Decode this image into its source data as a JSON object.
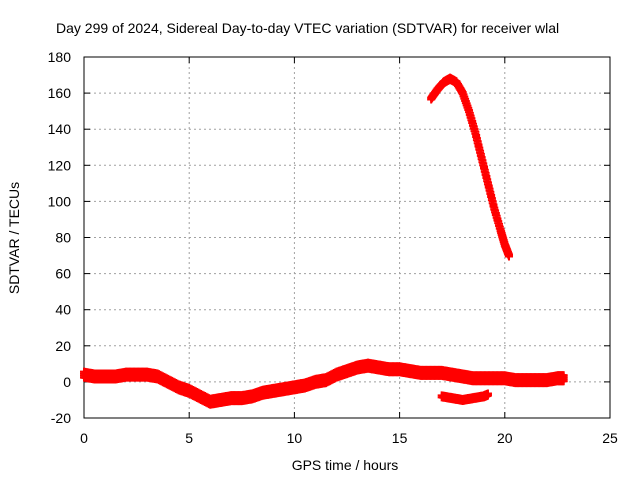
{
  "chart_data": {
    "type": "scatter",
    "title": "Day 299 of 2024, Sidereal Day-to-day VTEC variation (SDTVAR) for receiver wlal",
    "xlabel": "GPS time / hours",
    "ylabel": "SDTVAR / TECUs",
    "xlim": [
      0,
      25
    ],
    "ylim": [
      -20,
      180
    ],
    "xticks": [
      0,
      5,
      10,
      15,
      20,
      25
    ],
    "yticks": [
      -20,
      0,
      20,
      40,
      60,
      80,
      100,
      120,
      140,
      160,
      180
    ],
    "grid": true,
    "marker_color": "#ff0000",
    "series": [
      {
        "values": [
          [
            0.0,
            4
          ],
          [
            0.5,
            3
          ],
          [
            1.0,
            3
          ],
          [
            1.5,
            3
          ],
          [
            2.0,
            4
          ],
          [
            2.5,
            4
          ],
          [
            3.0,
            4
          ],
          [
            3.5,
            3
          ],
          [
            4.0,
            0
          ],
          [
            4.5,
            -3
          ],
          [
            5.0,
            -5
          ],
          [
            5.5,
            -8
          ],
          [
            6.0,
            -11
          ],
          [
            6.5,
            -10
          ],
          [
            7.0,
            -9
          ],
          [
            7.5,
            -9
          ],
          [
            8.0,
            -8
          ],
          [
            8.5,
            -6
          ],
          [
            9.0,
            -5
          ],
          [
            9.5,
            -4
          ],
          [
            10.0,
            -3
          ],
          [
            10.5,
            -2
          ],
          [
            11.0,
            0
          ],
          [
            11.5,
            1
          ],
          [
            12.0,
            4
          ],
          [
            12.5,
            6
          ],
          [
            13.0,
            8
          ],
          [
            13.5,
            9
          ],
          [
            14.0,
            8
          ],
          [
            14.5,
            7
          ],
          [
            15.0,
            7
          ],
          [
            15.5,
            6
          ],
          [
            16.0,
            5
          ],
          [
            16.5,
            5
          ],
          [
            17.0,
            5
          ],
          [
            17.5,
            4
          ],
          [
            18.0,
            3
          ],
          [
            18.5,
            2
          ],
          [
            19.0,
            2
          ],
          [
            19.5,
            2
          ],
          [
            20.0,
            2
          ],
          [
            20.5,
            1
          ],
          [
            21.0,
            1
          ],
          [
            21.5,
            1
          ],
          [
            22.0,
            1
          ],
          [
            22.5,
            2
          ],
          [
            22.8,
            2
          ]
        ]
      },
      {
        "values": [
          [
            16.5,
            157
          ],
          [
            16.8,
            162
          ],
          [
            17.1,
            166
          ],
          [
            17.4,
            168
          ],
          [
            17.7,
            166
          ],
          [
            18.0,
            160
          ],
          [
            18.3,
            150
          ],
          [
            18.6,
            138
          ],
          [
            18.9,
            124
          ],
          [
            19.2,
            110
          ],
          [
            19.5,
            96
          ],
          [
            19.8,
            84
          ],
          [
            20.0,
            76
          ],
          [
            20.2,
            70
          ]
        ]
      },
      {
        "values": [
          [
            17.0,
            -8
          ],
          [
            17.5,
            -9
          ],
          [
            18.0,
            -10
          ],
          [
            18.5,
            -9
          ],
          [
            19.0,
            -8
          ],
          [
            19.2,
            -7
          ]
        ]
      }
    ]
  }
}
